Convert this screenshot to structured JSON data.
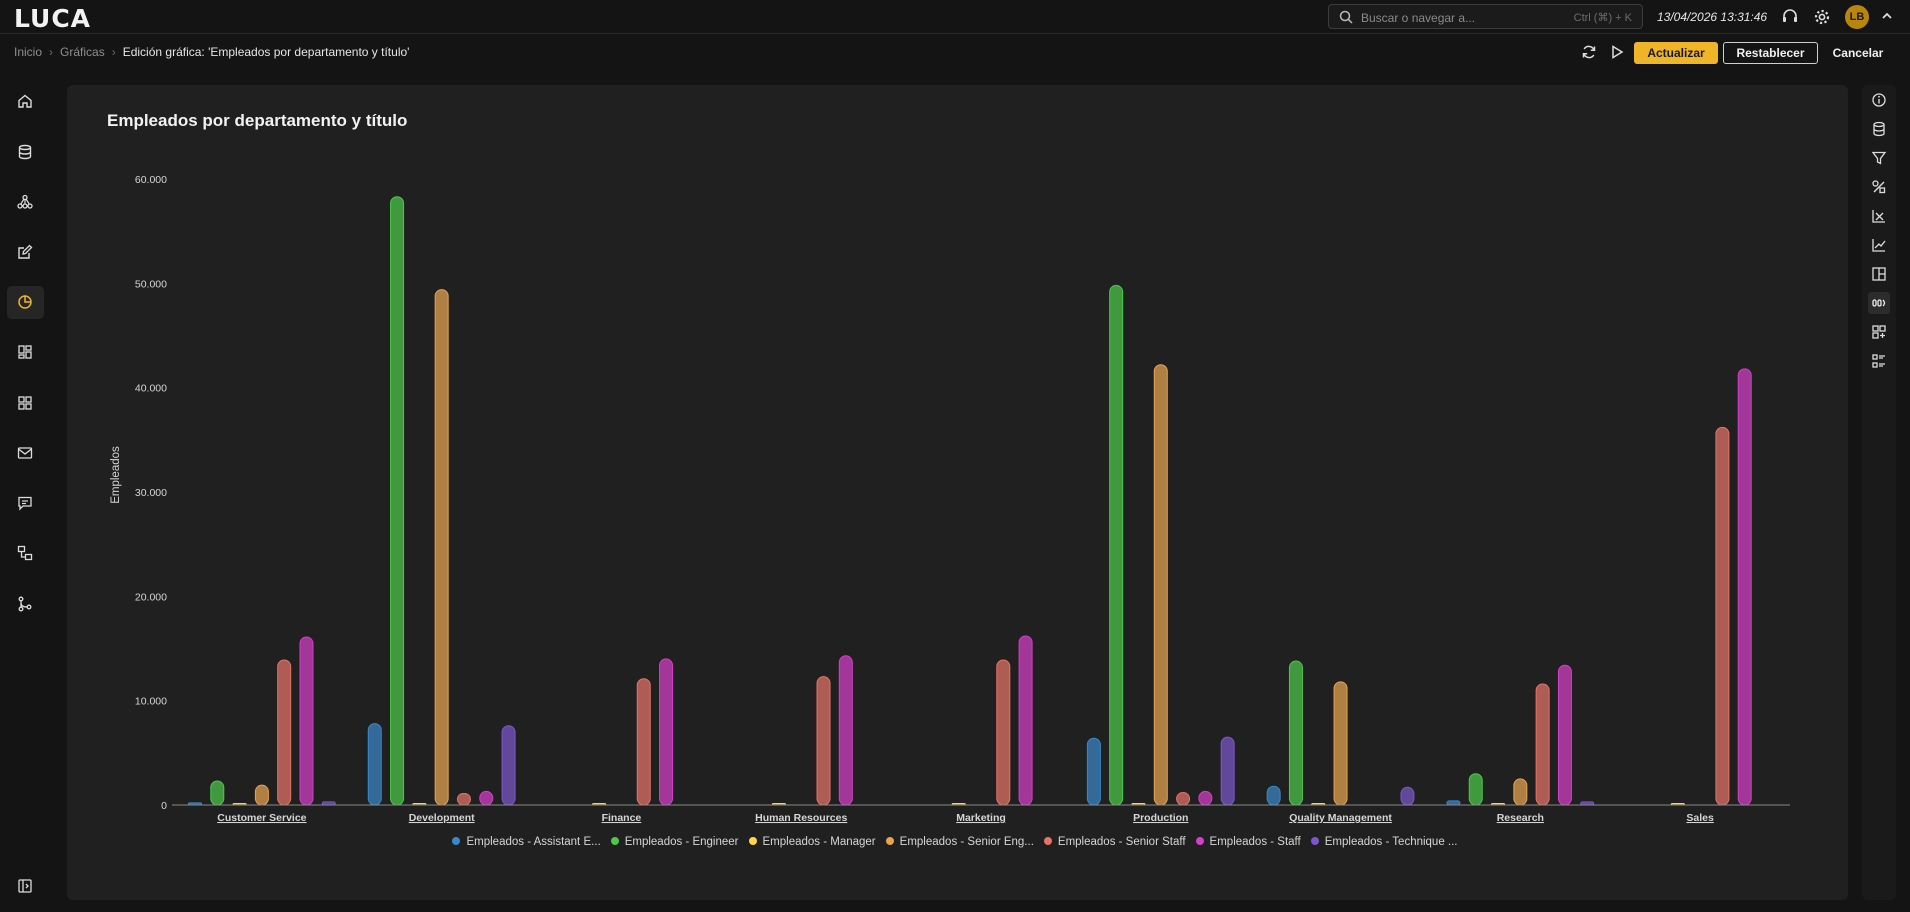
{
  "app": {
    "logo": "LUCA"
  },
  "search": {
    "placeholder": "Buscar o navegar a...",
    "shortcut": "Ctrl (⌘) + K"
  },
  "header": {
    "datetime": "13/04/2026 13:31:46",
    "avatar_initials": "LB"
  },
  "breadcrumb": {
    "items": [
      "Inicio",
      "Gráficas"
    ],
    "current": "Edición gráfica: 'Empleados por departamento y título'"
  },
  "toolbar": {
    "update_label": "Actualizar",
    "reset_label": "Restablecer",
    "cancel_label": "Cancelar"
  },
  "sidebar": {
    "items": [
      {
        "icon": "home-icon"
      },
      {
        "icon": "database-icon"
      },
      {
        "icon": "network-icon"
      },
      {
        "icon": "edit-icon"
      },
      {
        "icon": "chart-pie-icon",
        "active": true
      },
      {
        "icon": "dashboard-icon"
      },
      {
        "icon": "widgets-icon"
      },
      {
        "icon": "mail-icon"
      },
      {
        "icon": "chat-icon"
      },
      {
        "icon": "flow-icon"
      },
      {
        "icon": "branch-icon"
      }
    ]
  },
  "rightrail": {
    "items": [
      "info-icon",
      "database-icon",
      "filter-icon",
      "tools-icon",
      "axis-x-icon",
      "axis-y-icon",
      "layout-icon",
      "series-icon",
      "panels-icon",
      "list-icon"
    ],
    "active_index": 7
  },
  "colors": {
    "accent": "#f0b429",
    "panel": "#202020",
    "background": "#141414"
  },
  "chart_data": {
    "type": "bar",
    "title": "Empleados por departamento y título",
    "xlabel": "",
    "ylabel": "Empleados",
    "ylim": [
      0,
      60000
    ],
    "yticks": [
      "0",
      "10.000",
      "20.000",
      "30.000",
      "40.000",
      "50.000",
      "60.000"
    ],
    "categories": [
      "Customer Service",
      "Development",
      "Finance",
      "Human Resources",
      "Marketing",
      "Production",
      "Quality Management",
      "Research",
      "Sales"
    ],
    "series": [
      {
        "name": "Empleados - Assistant E...",
        "color": "#3a87c9",
        "values": [
          200,
          7800,
          0,
          0,
          0,
          6400,
          1800,
          400,
          0
        ]
      },
      {
        "name": "Empleados - Engineer",
        "color": "#4cc84a",
        "values": [
          2300,
          58300,
          0,
          0,
          0,
          49800,
          13800,
          3000,
          0
        ]
      },
      {
        "name": "Empleados - Manager",
        "color": "#ffd54a",
        "values": [
          20,
          10,
          15,
          15,
          15,
          25,
          5,
          10,
          15
        ]
      },
      {
        "name": "Empleados - Senior Eng...",
        "color": "#e6a350",
        "values": [
          1900,
          49400,
          0,
          0,
          0,
          42200,
          11800,
          2500,
          0
        ]
      },
      {
        "name": "Empleados - Senior Staff",
        "color": "#e57368",
        "values": [
          13900,
          1100,
          12100,
          12300,
          13900,
          1200,
          0,
          11600,
          36200
        ]
      },
      {
        "name": "Empleados - Staff",
        "color": "#d43ec8",
        "values": [
          16100,
          1300,
          14000,
          14300,
          16200,
          1300,
          0,
          13400,
          41800
        ]
      },
      {
        "name": "Empleados - Technique ...",
        "color": "#7c57c9",
        "values": [
          300,
          7600,
          0,
          0,
          0,
          6500,
          1700,
          300,
          0
        ]
      }
    ],
    "grid": false,
    "legend": "bottom"
  }
}
